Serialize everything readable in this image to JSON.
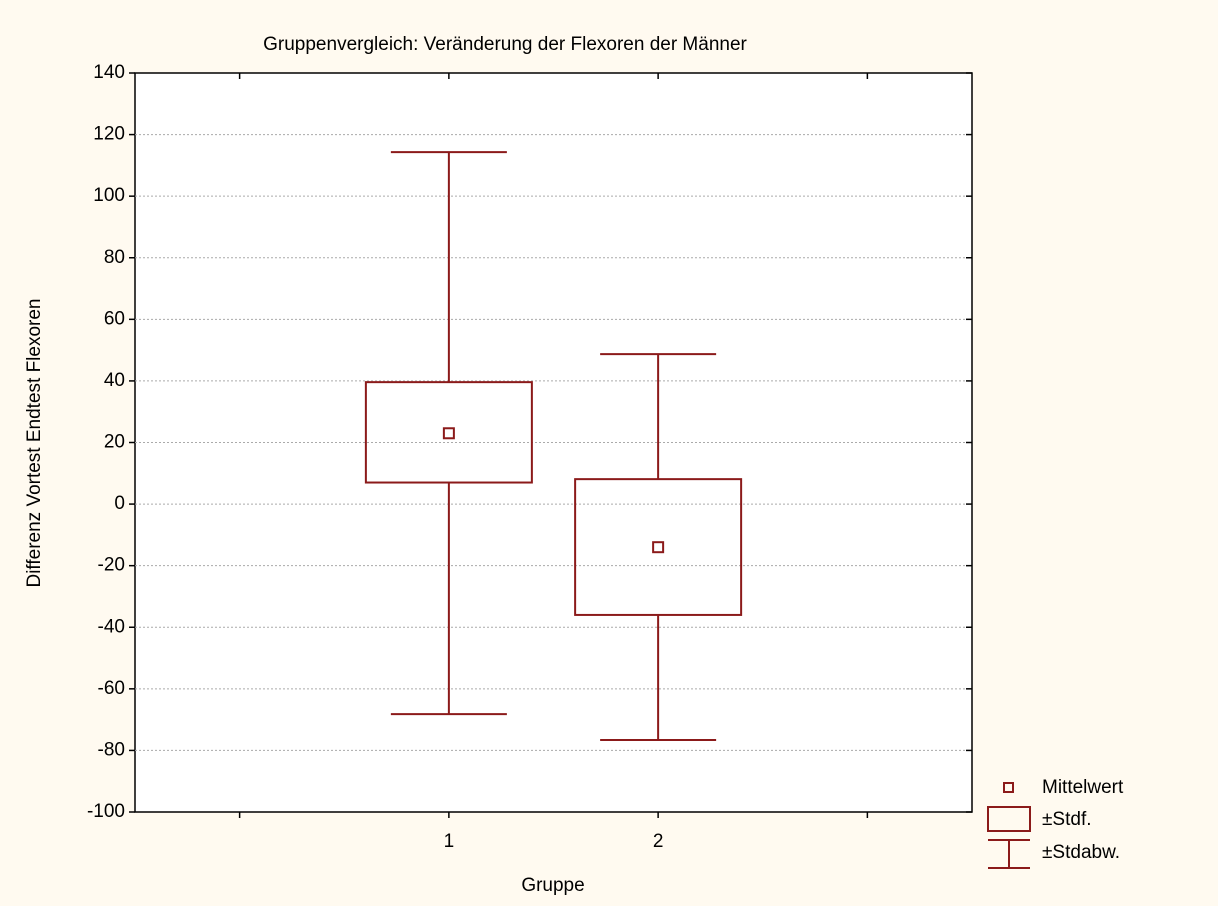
{
  "chart_data": {
    "type": "box",
    "title": "Gruppenvergleich: Veränderung der Flexoren der Männer",
    "xlabel": "Gruppe",
    "ylabel": "Differenz Vortest Endtest Flexoren",
    "categories": [
      null,
      "1",
      "2",
      null
    ],
    "mean": [
      null,
      23,
      -14,
      null
    ],
    "box_low": [
      null,
      7,
      -36,
      null
    ],
    "box_high": [
      null,
      39.6,
      8.1,
      null
    ],
    "whisker_low": [
      null,
      -68.2,
      -76.6,
      null
    ],
    "whisker_high": [
      null,
      114.3,
      48.7,
      null
    ],
    "legend": [
      "Mittelwert",
      "±Stdf.",
      "±Stdabw."
    ],
    "color": "#8b1a1a",
    "ylim": [
      -100,
      140
    ],
    "yticks": [
      -100,
      -80,
      -60,
      -40,
      -20,
      0,
      20,
      40,
      60,
      80,
      100,
      120,
      140
    ],
    "grid": true
  }
}
